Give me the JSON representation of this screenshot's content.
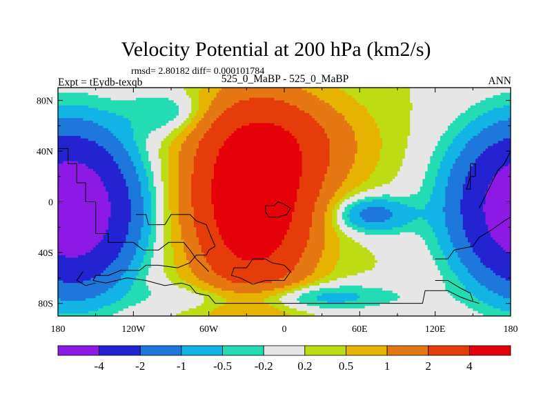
{
  "chart_data": {
    "type": "heatmap",
    "title": "Velocity Potential at 200 hPa (km2/s)",
    "stats_line": "rmsd= 2.80182 diff= 0.000101784",
    "left_label": "Expt = tEydb-texqb",
    "center_label": "525_0_MaBP - 525_0_MaBP",
    "right_label": "ANN",
    "x_ticks": [
      "180",
      "120W",
      "60W",
      "0",
      "60E",
      "120E",
      "180"
    ],
    "x_tick_values": [
      -180,
      -120,
      -60,
      0,
      60,
      120,
      180
    ],
    "y_ticks": [
      "80N",
      "40N",
      "0",
      "40S",
      "80S"
    ],
    "y_tick_values": [
      80,
      40,
      0,
      -40,
      -80
    ],
    "xlim": [
      -180,
      180
    ],
    "ylim": [
      -90,
      90
    ],
    "colorbar": {
      "levels": [
        -4,
        -2,
        -1,
        -0.5,
        -0.2,
        0.2,
        0.5,
        1,
        2,
        4
      ],
      "labels": [
        "-4",
        "-2",
        "-1",
        "-0.5",
        "-0.2",
        "0.2",
        "0.5",
        "1",
        "2",
        "4"
      ],
      "colors": [
        "#8c19e6",
        "#2323d2",
        "#1e78dc",
        "#12b4e6",
        "#23dcb4",
        "#e6e6e6",
        "#bedc14",
        "#e6b400",
        "#e67814",
        "#e63c0a",
        "#e6000a"
      ]
    }
  }
}
